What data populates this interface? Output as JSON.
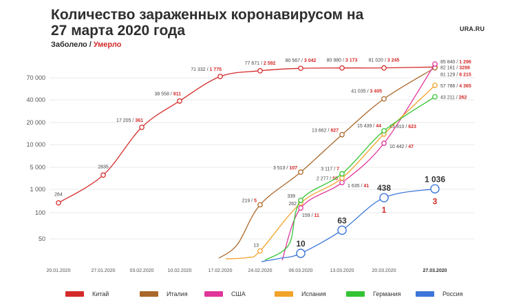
{
  "header": {
    "title": "Количество зараженных коронавирусом на 27 марта 2020 года",
    "brand": "URA.RU",
    "legend_caption_infected": "Заболело",
    "legend_caption_separator": "/",
    "legend_caption_dead": "Умерло"
  },
  "colors": {
    "China": "#d42a2a",
    "Italy": "#a9682a",
    "USA": "#e0359a",
    "Spain": "#f2a32a",
    "Germany": "#33c433",
    "Russia": "#3c76d9",
    "deaths_text": "#d42a2a",
    "grid": "#e8e8e8",
    "axis_text": "#555555"
  },
  "chart_data": {
    "type": "line",
    "y_scale": "log",
    "y_ticks": [
      "70 000",
      "40 000",
      "20 000",
      "10 000",
      "5 000",
      "1 000",
      "100",
      "50"
    ],
    "x_ticks": [
      "20.01.2020",
      "27.01.2020",
      "03.02.2020",
      "10.02.2020",
      "17.02.2020",
      "24.02.2020",
      "06.03.2020",
      "13.03.2020",
      "20.03.2020",
      "27.03.2020"
    ],
    "x_ticks_bold": [
      "27.03.2020"
    ],
    "series": [
      {
        "name": "Китай",
        "key": "China",
        "points": [
          {
            "date": "20.01.2020",
            "infected": "264",
            "dead": ""
          },
          {
            "date": "27.01.2020",
            "infected": "2835",
            "dead": ""
          },
          {
            "date": "03.02.2020",
            "infected": "17 205",
            "dead": "361"
          },
          {
            "date": "10.02.2020",
            "infected": "38 558",
            "dead": "911"
          },
          {
            "date": "17.02.2020",
            "infected": "71 332",
            "dead": "1 775"
          },
          {
            "date": "24.02.2020",
            "infected": "77 671",
            "dead": "2 592"
          },
          {
            "date": "06.03.2020",
            "infected": "80 567",
            "dead": "3 042"
          },
          {
            "date": "13.03.2020",
            "infected": "80 980",
            "dead": "3 173"
          },
          {
            "date": "20.03.2020",
            "infected": "81 020",
            "dead": "3 245"
          },
          {
            "date": "27.03.2020",
            "infected": "82 161",
            "dead": "3298"
          }
        ]
      },
      {
        "name": "Италия",
        "key": "Italy",
        "points": [
          {
            "date": "24.02.2020",
            "infected": "219",
            "dead": "5"
          },
          {
            "date": "06.03.2020",
            "infected": "3 513",
            "dead": "107"
          },
          {
            "date": "13.03.2020",
            "infected": "13 662",
            "dead": "827"
          },
          {
            "date": "20.03.2020",
            "infected": "41 035",
            "dead": "3 405"
          },
          {
            "date": "27.03.2020",
            "infected": "81 129",
            "dead": "8 215"
          }
        ]
      },
      {
        "name": "США",
        "key": "USA",
        "points": [
          {
            "date": "06.03.2020",
            "infected": "159",
            "dead": "11"
          },
          {
            "date": "13.03.2020",
            "infected": "1 635",
            "dead": "41"
          },
          {
            "date": "20.03.2020",
            "infected": "10 442",
            "dead": "47"
          },
          {
            "date": "27.03.2020",
            "infected": "85 840",
            "dead": "1 296"
          }
        ]
      },
      {
        "name": "Испания",
        "key": "Spain",
        "points": [
          {
            "date": "24.02.2020",
            "infected": "13",
            "dead": ""
          },
          {
            "date": "06.03.2020",
            "infected": "262",
            "dead": ""
          },
          {
            "date": "13.03.2020",
            "infected": "2 277",
            "dead": "55"
          },
          {
            "date": "20.03.2020",
            "infected": "13 910",
            "dead": "623"
          },
          {
            "date": "27.03.2020",
            "infected": "57 786",
            "dead": "4 365"
          }
        ]
      },
      {
        "name": "Германия",
        "key": "Germany",
        "points": [
          {
            "date": "06.03.2020",
            "infected": "339",
            "dead": ""
          },
          {
            "date": "13.03.2020",
            "infected": "3 117",
            "dead": "7"
          },
          {
            "date": "20.03.2020",
            "infected": "15 439",
            "dead": "44"
          },
          {
            "date": "27.03.2020",
            "infected": "43 211",
            "dead": "262"
          }
        ]
      },
      {
        "name": "Россия",
        "key": "Russia",
        "points": [
          {
            "date": "06.03.2020",
            "infected": "10",
            "dead": ""
          },
          {
            "date": "13.03.2020",
            "infected": "63",
            "dead": ""
          },
          {
            "date": "20.03.2020",
            "infected": "438",
            "dead": "1"
          },
          {
            "date": "27.03.2020",
            "infected": "1 036",
            "dead": "3"
          }
        ]
      }
    ],
    "legend": [
      "Китай",
      "Италия",
      "США",
      "Испания",
      "Германия",
      "Россия"
    ]
  }
}
